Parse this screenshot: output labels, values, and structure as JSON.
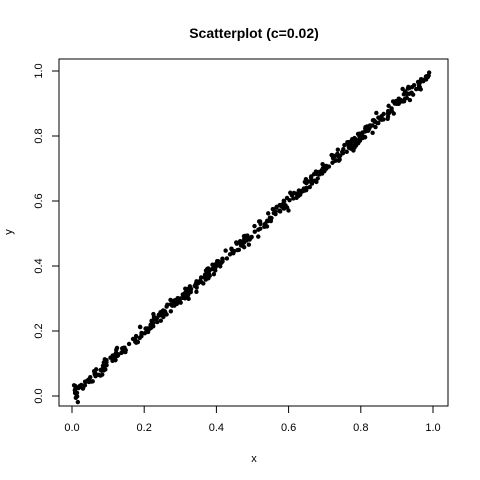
{
  "chart_data": {
    "type": "scatter",
    "title": "Scatterplot (c=0.02)",
    "xlabel": "x",
    "ylabel": "y",
    "xlim": [
      0,
      1
    ],
    "ylim": [
      0,
      1
    ],
    "xticks": [
      "0.0",
      "0.2",
      "0.4",
      "0.6",
      "0.8",
      "1.0"
    ],
    "yticks": [
      "0.0",
      "0.2",
      "0.4",
      "0.6",
      "0.8",
      "1.0"
    ],
    "grid": false,
    "legend": "none",
    "marker_color": "#000000",
    "series": [
      {
        "points_summary": "approximately 500 points lying on the line y = x, spread about ±0.02",
        "count": 500,
        "slope": 1.0,
        "intercept": 0.0,
        "noise": 0.02,
        "x_range": [
          0.005,
          0.99
        ]
      }
    ]
  }
}
